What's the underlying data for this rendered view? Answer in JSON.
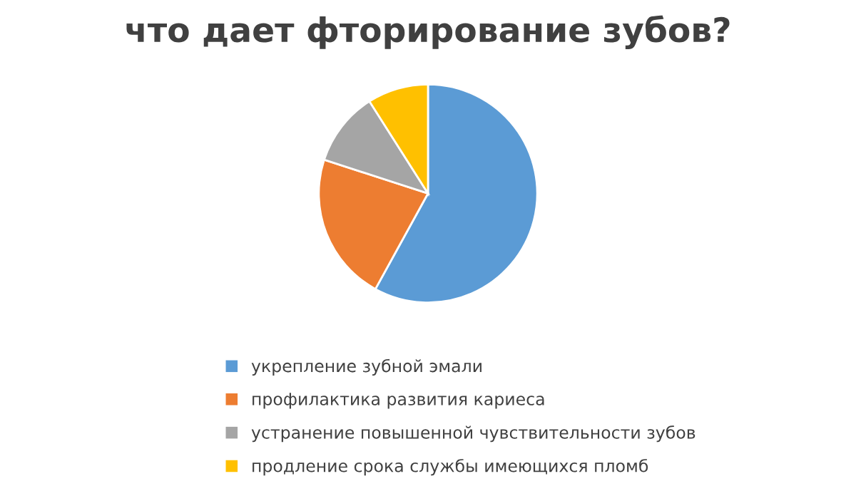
{
  "chart_data": {
    "type": "pie",
    "title": "что дает фторирование зубов?",
    "categories": [
      "укрепление зубной эмали",
      "профилактика развития кариеса",
      "устранение повышенной чувствительности зубов",
      "продление срока службы имеющихся пломб"
    ],
    "values": [
      58,
      22,
      11,
      9
    ],
    "colors": [
      "#5b9bd5",
      "#ed7d31",
      "#a5a5a5",
      "#ffc000"
    ],
    "legend": "bottom"
  }
}
